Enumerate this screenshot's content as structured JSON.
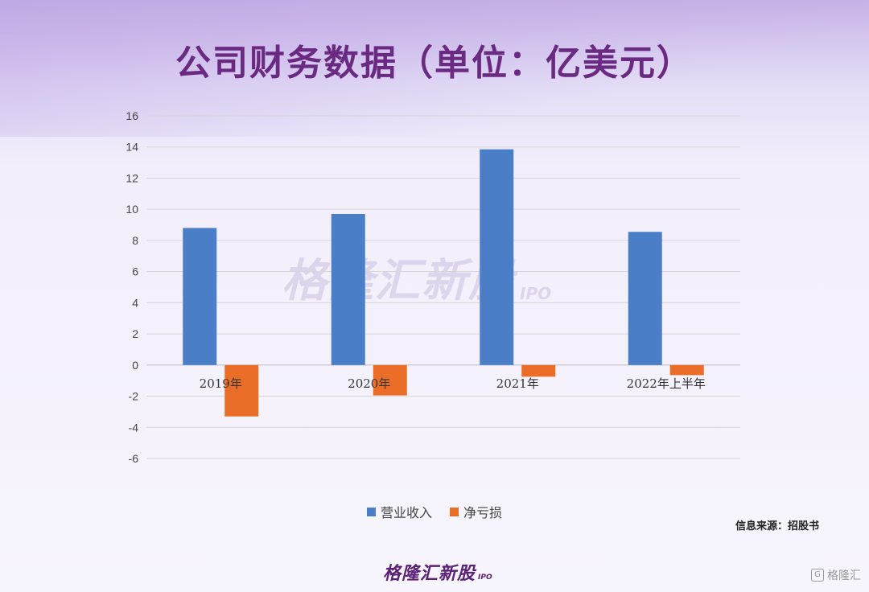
{
  "title": "公司财务数据（单位：亿美元）",
  "chart_data": {
    "type": "bar",
    "categories": [
      "2019年",
      "2020年",
      "2021年",
      "2022年上半年"
    ],
    "series": [
      {
        "name": "营业收入",
        "color": "#4a7fc8",
        "values": [
          8.8,
          9.7,
          13.85,
          8.55
        ]
      },
      {
        "name": "净亏损",
        "color": "#ea6e27",
        "values": [
          -3.3,
          -1.95,
          -0.75,
          -0.65
        ]
      }
    ],
    "ylim": [
      -6,
      16
    ],
    "yticks": [
      16,
      14,
      12,
      10,
      8,
      6,
      4,
      2,
      0,
      -2,
      -4,
      -6
    ],
    "grid": true,
    "legend_position": "bottom"
  },
  "source": "信息来源：招股书",
  "watermark": {
    "main": "格隆汇新股",
    "sub": "IPO"
  },
  "logo": {
    "main": "格隆汇新股",
    "sub": "IPO"
  },
  "corner": {
    "icon": "G",
    "text": "格隆汇"
  }
}
